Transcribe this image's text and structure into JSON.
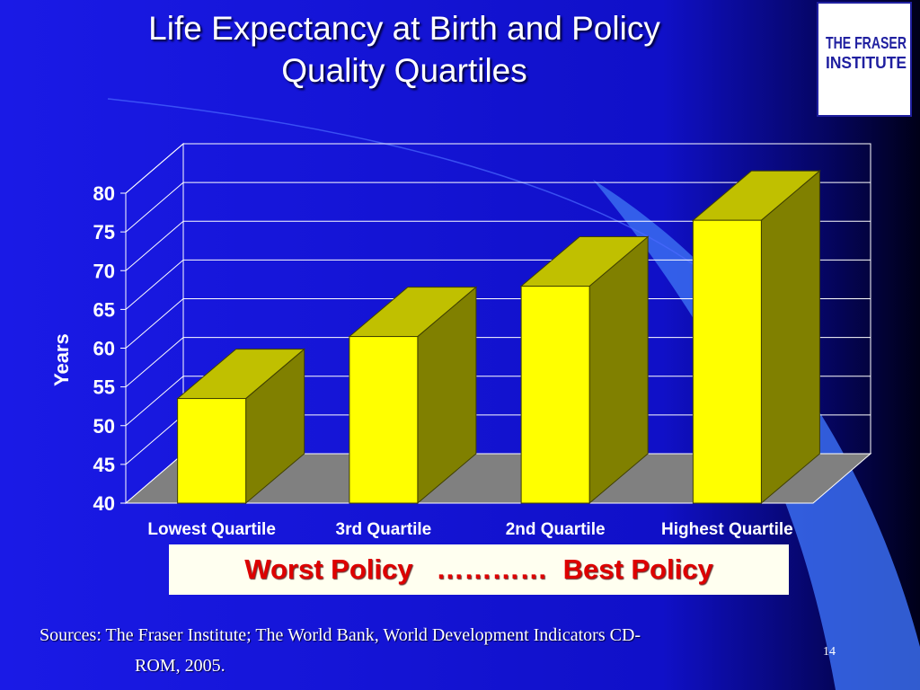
{
  "slide": {
    "title_line1": "Life Expectancy at Birth and Policy",
    "title_line2": "Quality Quartiles",
    "logo_line1": "THE FRASER",
    "logo_line2": "INSTITUTE",
    "policy_left": "Worst Policy",
    "policy_dots": "…………",
    "policy_right": "Best Policy",
    "sources_line1": "Sources: The Fraser Institute; The World Bank, World Development Indicators CD-",
    "sources_line2": "ROM, 2005.",
    "page_number": "14"
  },
  "colors": {
    "bar_front": "#ffff00",
    "bar_top": "#c0c000",
    "bar_side": "#808000",
    "floor": "#808080",
    "grid": "#ffffff",
    "axis_text": "#ffffff",
    "policy_text": "#dd0000",
    "logo_blue": "#2020a0"
  },
  "chart_data": {
    "type": "bar",
    "title": "Life Expectancy at Birth and Policy Quality Quartiles",
    "categories": [
      "Lowest Quartile",
      "3rd Quartile",
      "2nd Quartile",
      "Highest Quartile"
    ],
    "values": [
      53.5,
      61.5,
      68,
      76.5
    ],
    "ylabel": "Years",
    "xlabel": "",
    "ylim": [
      40,
      80
    ],
    "yticks": [
      40,
      45,
      50,
      55,
      60,
      65,
      70,
      75,
      80
    ],
    "grid": true,
    "style": "3d"
  }
}
